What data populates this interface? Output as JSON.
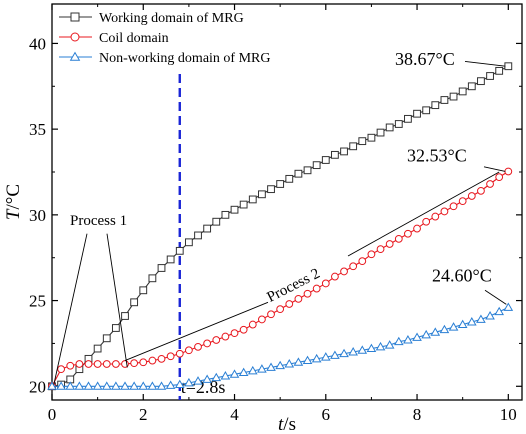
{
  "chart_data": {
    "type": "line",
    "xlabel": "t/s",
    "ylabel": "T/°C",
    "xlim": [
      0,
      10.3
    ],
    "ylim": [
      19.2,
      42.3
    ],
    "xticks": [
      0,
      2,
      4,
      6,
      8,
      10
    ],
    "yticks": [
      20,
      25,
      30,
      35,
      40
    ],
    "grid": false,
    "legend_position": "top-left",
    "series": [
      {
        "name": "Working domain of MRG",
        "color": "#333333",
        "marker": "square",
        "x": [
          0,
          0.2,
          0.4,
          0.6,
          0.8,
          1.0,
          1.2,
          1.4,
          1.6,
          1.8,
          2.0,
          2.2,
          2.4,
          2.6,
          2.8,
          3.0,
          3.2,
          3.4,
          3.6,
          3.8,
          4.0,
          4.2,
          4.4,
          4.6,
          4.8,
          5.0,
          5.2,
          5.4,
          5.6,
          5.8,
          6.0,
          6.2,
          6.4,
          6.6,
          6.8,
          7.0,
          7.2,
          7.4,
          7.6,
          7.8,
          8.0,
          8.2,
          8.4,
          8.6,
          8.8,
          9.0,
          9.2,
          9.4,
          9.6,
          9.8,
          10.0
        ],
        "values": [
          20.0,
          20.1,
          20.4,
          21.0,
          21.6,
          22.2,
          22.8,
          23.4,
          24.1,
          24.9,
          25.6,
          26.3,
          26.9,
          27.4,
          27.9,
          28.4,
          28.8,
          29.2,
          29.6,
          30.0,
          30.3,
          30.6,
          30.9,
          31.2,
          31.5,
          31.8,
          32.1,
          32.4,
          32.6,
          32.9,
          33.2,
          33.5,
          33.7,
          34.0,
          34.3,
          34.5,
          34.8,
          35.1,
          35.3,
          35.6,
          35.9,
          36.1,
          36.4,
          36.7,
          36.9,
          37.2,
          37.5,
          37.8,
          38.1,
          38.4,
          38.67
        ]
      },
      {
        "name": "Coil domain",
        "color": "#e8181f",
        "marker": "circle",
        "x": [
          0,
          0.2,
          0.4,
          0.6,
          0.8,
          1.0,
          1.2,
          1.4,
          1.6,
          1.8,
          2.0,
          2.2,
          2.4,
          2.6,
          2.8,
          3.0,
          3.2,
          3.4,
          3.6,
          3.8,
          4.0,
          4.2,
          4.4,
          4.6,
          4.8,
          5.0,
          5.2,
          5.4,
          5.6,
          5.8,
          6.0,
          6.2,
          6.4,
          6.6,
          6.8,
          7.0,
          7.2,
          7.4,
          7.6,
          7.8,
          8.0,
          8.2,
          8.4,
          8.6,
          8.8,
          9.0,
          9.2,
          9.4,
          9.6,
          9.8,
          10.0
        ],
        "values": [
          20.0,
          21.0,
          21.2,
          21.3,
          21.3,
          21.3,
          21.3,
          21.3,
          21.3,
          21.35,
          21.4,
          21.5,
          21.6,
          21.75,
          21.9,
          22.1,
          22.3,
          22.5,
          22.7,
          22.9,
          23.1,
          23.3,
          23.6,
          23.9,
          24.2,
          24.5,
          24.8,
          25.1,
          25.4,
          25.7,
          26.0,
          26.4,
          26.7,
          27.0,
          27.3,
          27.7,
          28.0,
          28.3,
          28.6,
          28.9,
          29.2,
          29.6,
          29.9,
          30.2,
          30.5,
          30.8,
          31.1,
          31.4,
          31.8,
          32.2,
          32.53
        ]
      },
      {
        "name": "Non-working domain of MRG",
        "color": "#2a7fd4",
        "marker": "triangle",
        "x": [
          0,
          0.2,
          0.4,
          0.6,
          0.8,
          1.0,
          1.2,
          1.4,
          1.6,
          1.8,
          2.0,
          2.2,
          2.4,
          2.6,
          2.8,
          3.0,
          3.2,
          3.4,
          3.6,
          3.8,
          4.0,
          4.2,
          4.4,
          4.6,
          4.8,
          5.0,
          5.2,
          5.4,
          5.6,
          5.8,
          6.0,
          6.2,
          6.4,
          6.6,
          6.8,
          7.0,
          7.2,
          7.4,
          7.6,
          7.8,
          8.0,
          8.2,
          8.4,
          8.6,
          8.8,
          9.0,
          9.2,
          9.4,
          9.6,
          9.8,
          10.0
        ],
        "values": [
          20.0,
          20.0,
          20.0,
          20.0,
          20.0,
          20.0,
          20.0,
          20.0,
          20.0,
          20.0,
          20.0,
          20.0,
          20.0,
          20.05,
          20.1,
          20.2,
          20.3,
          20.4,
          20.5,
          20.6,
          20.7,
          20.8,
          20.9,
          21.0,
          21.1,
          21.2,
          21.3,
          21.4,
          21.5,
          21.6,
          21.7,
          21.8,
          21.9,
          22.0,
          22.1,
          22.2,
          22.3,
          22.4,
          22.6,
          22.7,
          22.85,
          23.0,
          23.15,
          23.3,
          23.45,
          23.6,
          23.75,
          23.9,
          24.1,
          24.35,
          24.6
        ]
      }
    ],
    "annotations": {
      "end_working": "38.67°C",
      "end_coil": "32.53°C",
      "end_nonworking": "24.60°C",
      "process1": "Process 1",
      "process2": "Process 2",
      "vline_label": "t=2.8s",
      "vline_x": 2.8
    }
  }
}
